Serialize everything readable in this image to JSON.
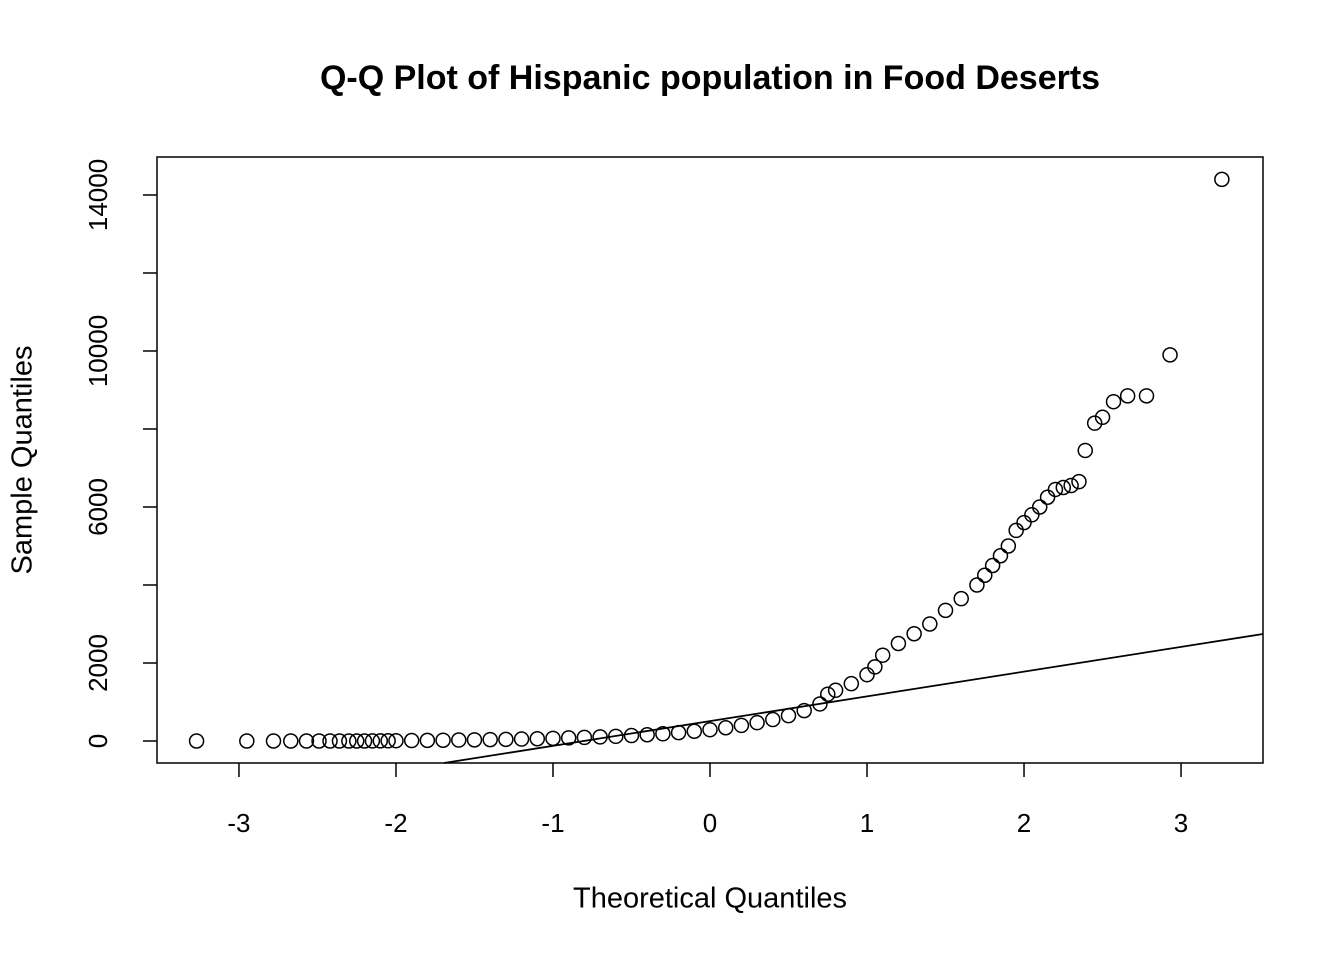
{
  "chart_data": {
    "type": "scatter",
    "title": "Q-Q Plot of Hispanic population in Food Deserts",
    "x_label": "Theoretical Quantiles",
    "y_label": "Sample Quantiles",
    "xlim": [
      -3.522,
      3.522
    ],
    "ylim": [
      -564,
      14974
    ],
    "xticks": [
      -3,
      -2,
      -1,
      0,
      1,
      2,
      3
    ],
    "yticks": [
      0,
      2000,
      6000,
      10000,
      14000
    ],
    "y_unlabeled_ticks": [
      4000,
      8000,
      12000
    ],
    "marker": "open-circle",
    "color": "#000000",
    "x": [
      -3.27,
      -2.95,
      -2.78,
      -2.67,
      -2.57,
      -2.49,
      -2.42,
      -2.36,
      -2.3,
      -2.25,
      -2.2,
      -2.15,
      -2.1,
      -2.05,
      -2.0,
      -1.9,
      -1.8,
      -1.7,
      -1.6,
      -1.5,
      -1.4,
      -1.3,
      -1.2,
      -1.1,
      -1.0,
      -0.9,
      -0.8,
      -0.7,
      -0.6,
      -0.5,
      -0.4,
      -0.3,
      -0.2,
      -0.1,
      0,
      0.1,
      0.2,
      0.3,
      0.4,
      0.5,
      0.6,
      0.7,
      0.75,
      0.8,
      0.9,
      1.0,
      1.05,
      1.1,
      1.2,
      1.3,
      1.4,
      1.5,
      1.6,
      1.7,
      1.75,
      1.8,
      1.85,
      1.9,
      1.95,
      2.0,
      2.05,
      2.1,
      2.15,
      2.2,
      2.25,
      2.3,
      2.35,
      2.39,
      2.45,
      2.5,
      2.57,
      2.66,
      2.78,
      2.93,
      3.26
    ],
    "values": [
      0,
      0,
      0,
      0,
      0,
      0,
      0,
      0,
      0,
      0,
      0,
      2,
      4,
      6,
      8,
      12,
      16,
      20,
      25,
      30,
      36,
      42,
      50,
      58,
      68,
      80,
      92,
      105,
      120,
      140,
      160,
      185,
      215,
      250,
      290,
      340,
      400,
      470,
      550,
      650,
      780,
      950,
      1200,
      1300,
      1470,
      1700,
      1900,
      2200,
      2500,
      2750,
      3000,
      3350,
      3650,
      4000,
      4250,
      4500,
      4750,
      5000,
      5400,
      5600,
      5800,
      6000,
      6250,
      6450,
      6500,
      6550,
      6650,
      7450,
      8150,
      8300,
      8700,
      8850,
      8850,
      9900,
      14400
    ],
    "reference_line": {
      "x": [
        -1.694,
        3.522
      ],
      "values": [
        -564,
        2744
      ]
    }
  }
}
